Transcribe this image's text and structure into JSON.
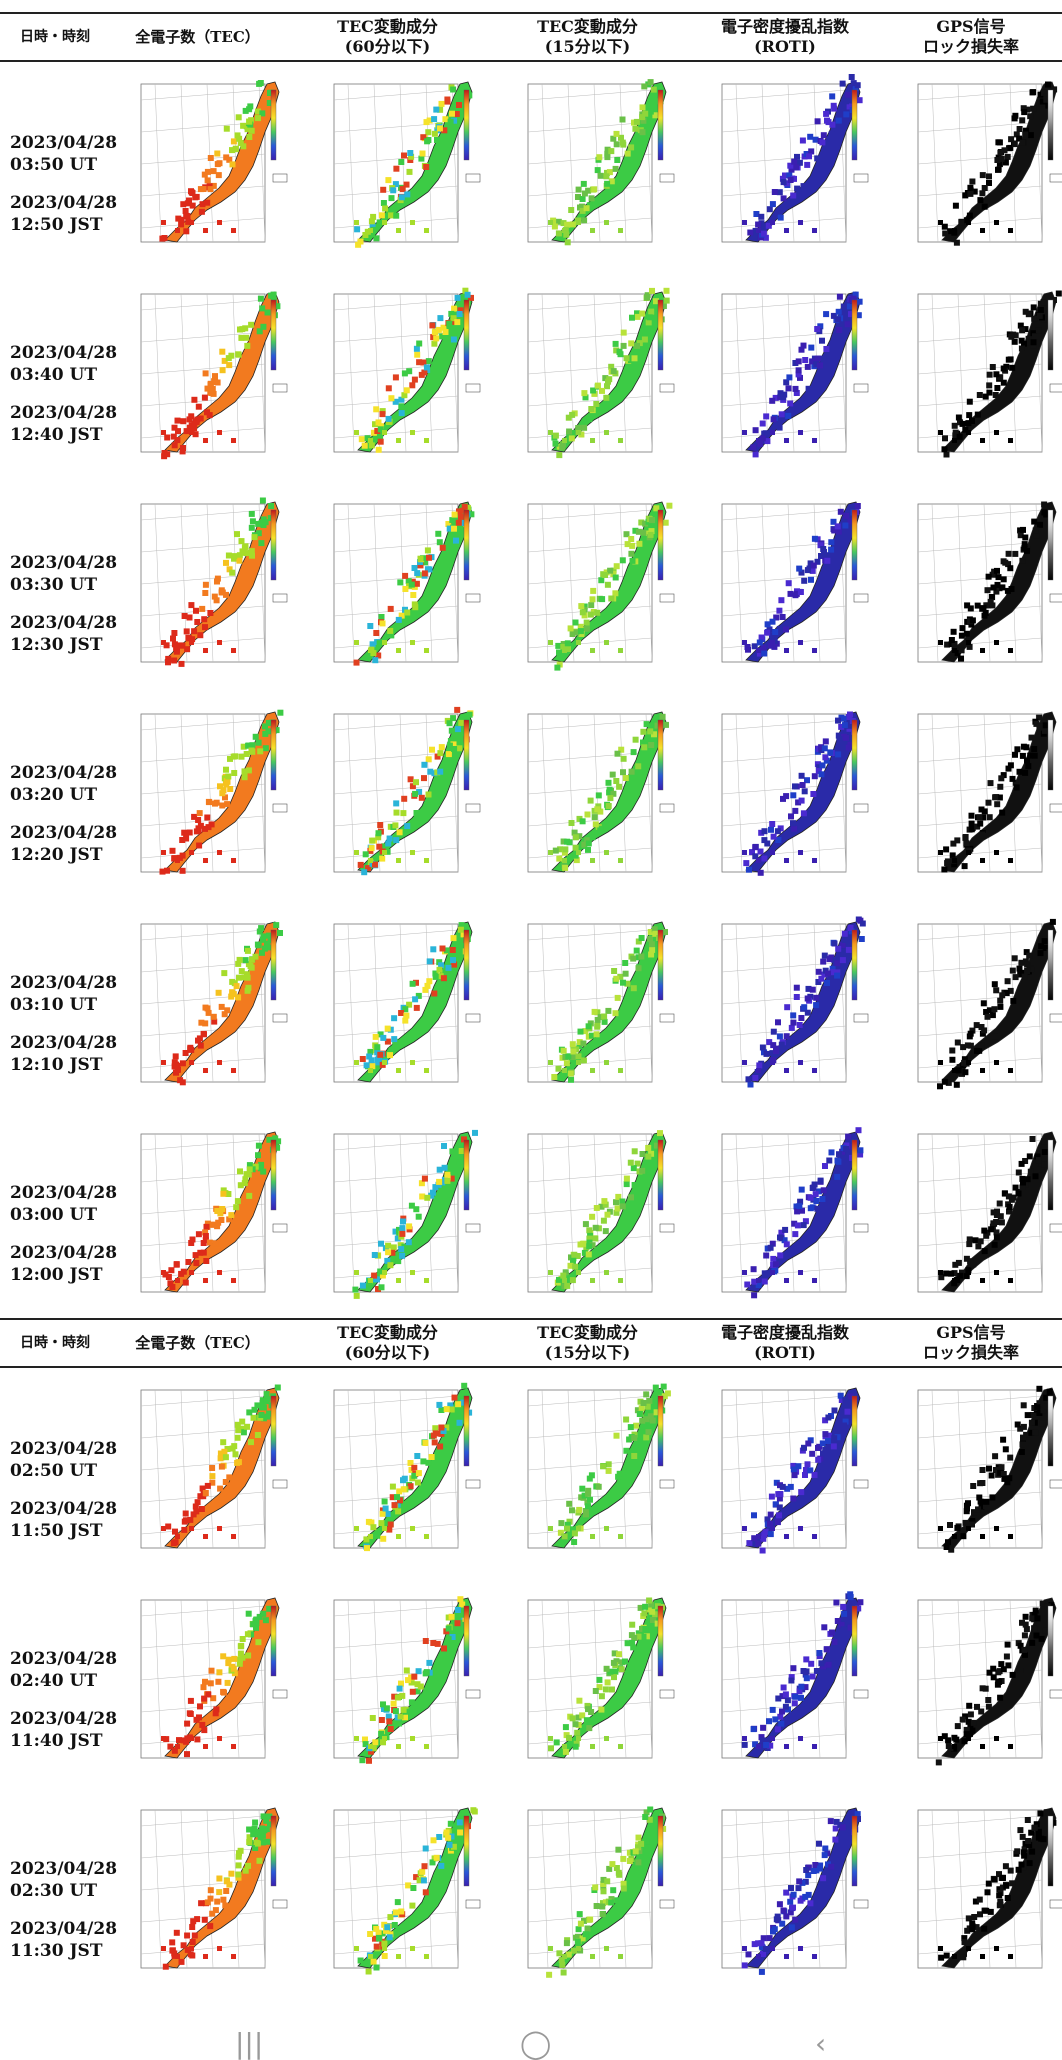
{
  "header": {
    "datetime": "日時・時刻",
    "tec": "全電子数（TEC）",
    "dtec60": "TEC変動成分\n(60分以下)",
    "dtec15": "TEC変動成分\n(15分以下)",
    "roti": "電子密度擾乱指数\n(ROTI)",
    "lol": "GPS信号\nロック損失率"
  },
  "rows": [
    {
      "ut": "2023/04/28\n03:50 UT",
      "jst": "2023/04/28\n12:50 JST"
    },
    {
      "ut": "2023/04/28\n03:40 UT",
      "jst": "2023/04/28\n12:40 JST"
    },
    {
      "ut": "2023/04/28\n03:30 UT",
      "jst": "2023/04/28\n12:30 JST"
    },
    {
      "ut": "2023/04/28\n03:20 UT",
      "jst": "2023/04/28\n12:20 JST"
    },
    {
      "ut": "2023/04/28\n03:10 UT",
      "jst": "2023/04/28\n12:10 JST"
    },
    {
      "ut": "2023/04/28\n03:00 UT",
      "jst": "2023/04/28\n12:00 JST"
    },
    {
      "ut": "2023/04/28\n02:50 UT",
      "jst": "2023/04/28\n11:50 JST"
    },
    {
      "ut": "2023/04/28\n02:40 UT",
      "jst": "2023/04/28\n11:40 JST"
    },
    {
      "ut": "2023/04/28\n02:30 UT",
      "jst": "2023/04/28\n11:30 JST"
    }
  ],
  "thumbs": {
    "tec": {
      "icon": "tec-map-thumbnail",
      "colors": [
        "#dd2a1a",
        "#f27a1f",
        "#f5c21f",
        "#a6dc2a",
        "#3ccb45"
      ]
    },
    "dtec60": {
      "icon": "dtec60-map-thumbnail",
      "colors": [
        "#a6dc2a",
        "#3ccb45",
        "#f5e22a",
        "#2ab4d8",
        "#e04020"
      ]
    },
    "dtec15": {
      "icon": "dtec15-map-thumbnail",
      "colors": [
        "#8fd63a",
        "#3ccb45",
        "#b8e23a",
        "#6ac048"
      ]
    },
    "roti": {
      "icon": "roti-map-thumbnail",
      "colors": [
        "#3a1fb0",
        "#2a2aa8",
        "#4a2ad0",
        "#1f3ec8"
      ]
    },
    "lol": {
      "icon": "lol-map-thumbnail",
      "colors": [
        "#000000",
        "#111111"
      ]
    }
  },
  "nav": {
    "recent_glyph": "|||",
    "home_glyph": "◯",
    "back_glyph": "‹"
  }
}
